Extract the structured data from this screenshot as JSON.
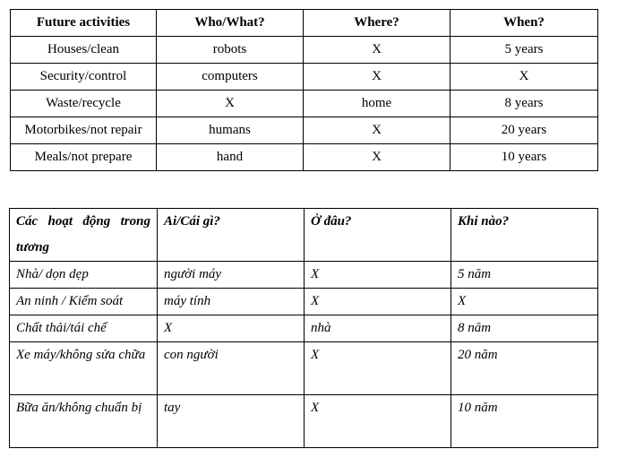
{
  "table_en": {
    "headers": [
      "Future activities",
      "Who/What?",
      "Where?",
      "When?"
    ],
    "rows": [
      [
        "Houses/clean",
        "robots",
        "X",
        "5 years"
      ],
      [
        "Security/control",
        "computers",
        "X",
        "X"
      ],
      [
        "Waste/recycle",
        "X",
        "home",
        "8 years"
      ],
      [
        "Motorbikes/not repair",
        "humans",
        "X",
        "20 years"
      ],
      [
        "Meals/not prepare",
        "hand",
        "X",
        "10 years"
      ]
    ]
  },
  "table_vi": {
    "headers": [
      "Các hoạt động trong tương",
      "Ai/Cái gì?",
      "Ở đâu?",
      "Khi nào?"
    ],
    "rows": [
      [
        "Nhà/ dọn dẹp",
        "người máy",
        "X",
        "5 năm"
      ],
      [
        "An ninh / Kiểm soát",
        "máy tính",
        "X",
        "X"
      ],
      [
        "Chất thải/tái chế",
        "X",
        "nhà",
        "8 năm"
      ],
      [
        "Xe máy/không sửa chữa",
        "con người",
        "X",
        "20 năm"
      ],
      [
        "Bữa ăn/không chuẩn bị",
        "tay",
        "X",
        "10 năm"
      ]
    ]
  }
}
